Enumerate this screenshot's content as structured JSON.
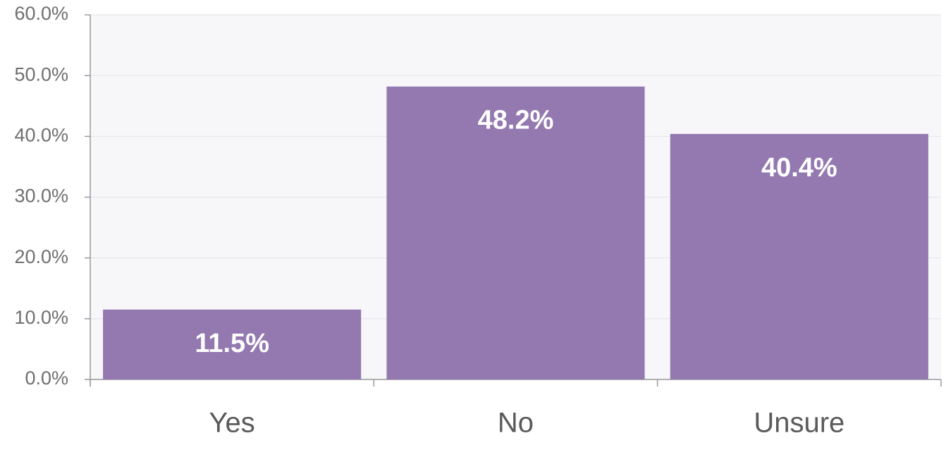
{
  "chart_data": {
    "type": "bar",
    "categories": [
      "Yes",
      "No",
      "Unsure"
    ],
    "values": [
      11.5,
      48.2,
      40.4
    ],
    "value_labels": [
      "11.5%",
      "48.2%",
      "40.4%"
    ],
    "color": "#9479b0",
    "ylim": [
      0,
      60
    ],
    "yticks": [
      {
        "value": 0,
        "label": "0.0%"
      },
      {
        "value": 10,
        "label": "10.0%"
      },
      {
        "value": 20,
        "label": "20.0%"
      },
      {
        "value": 30,
        "label": "30.0%"
      },
      {
        "value": 40,
        "label": "40.0%"
      },
      {
        "value": 50,
        "label": "50.0%"
      },
      {
        "value": 60,
        "label": "60.0%"
      }
    ],
    "grid": true
  }
}
